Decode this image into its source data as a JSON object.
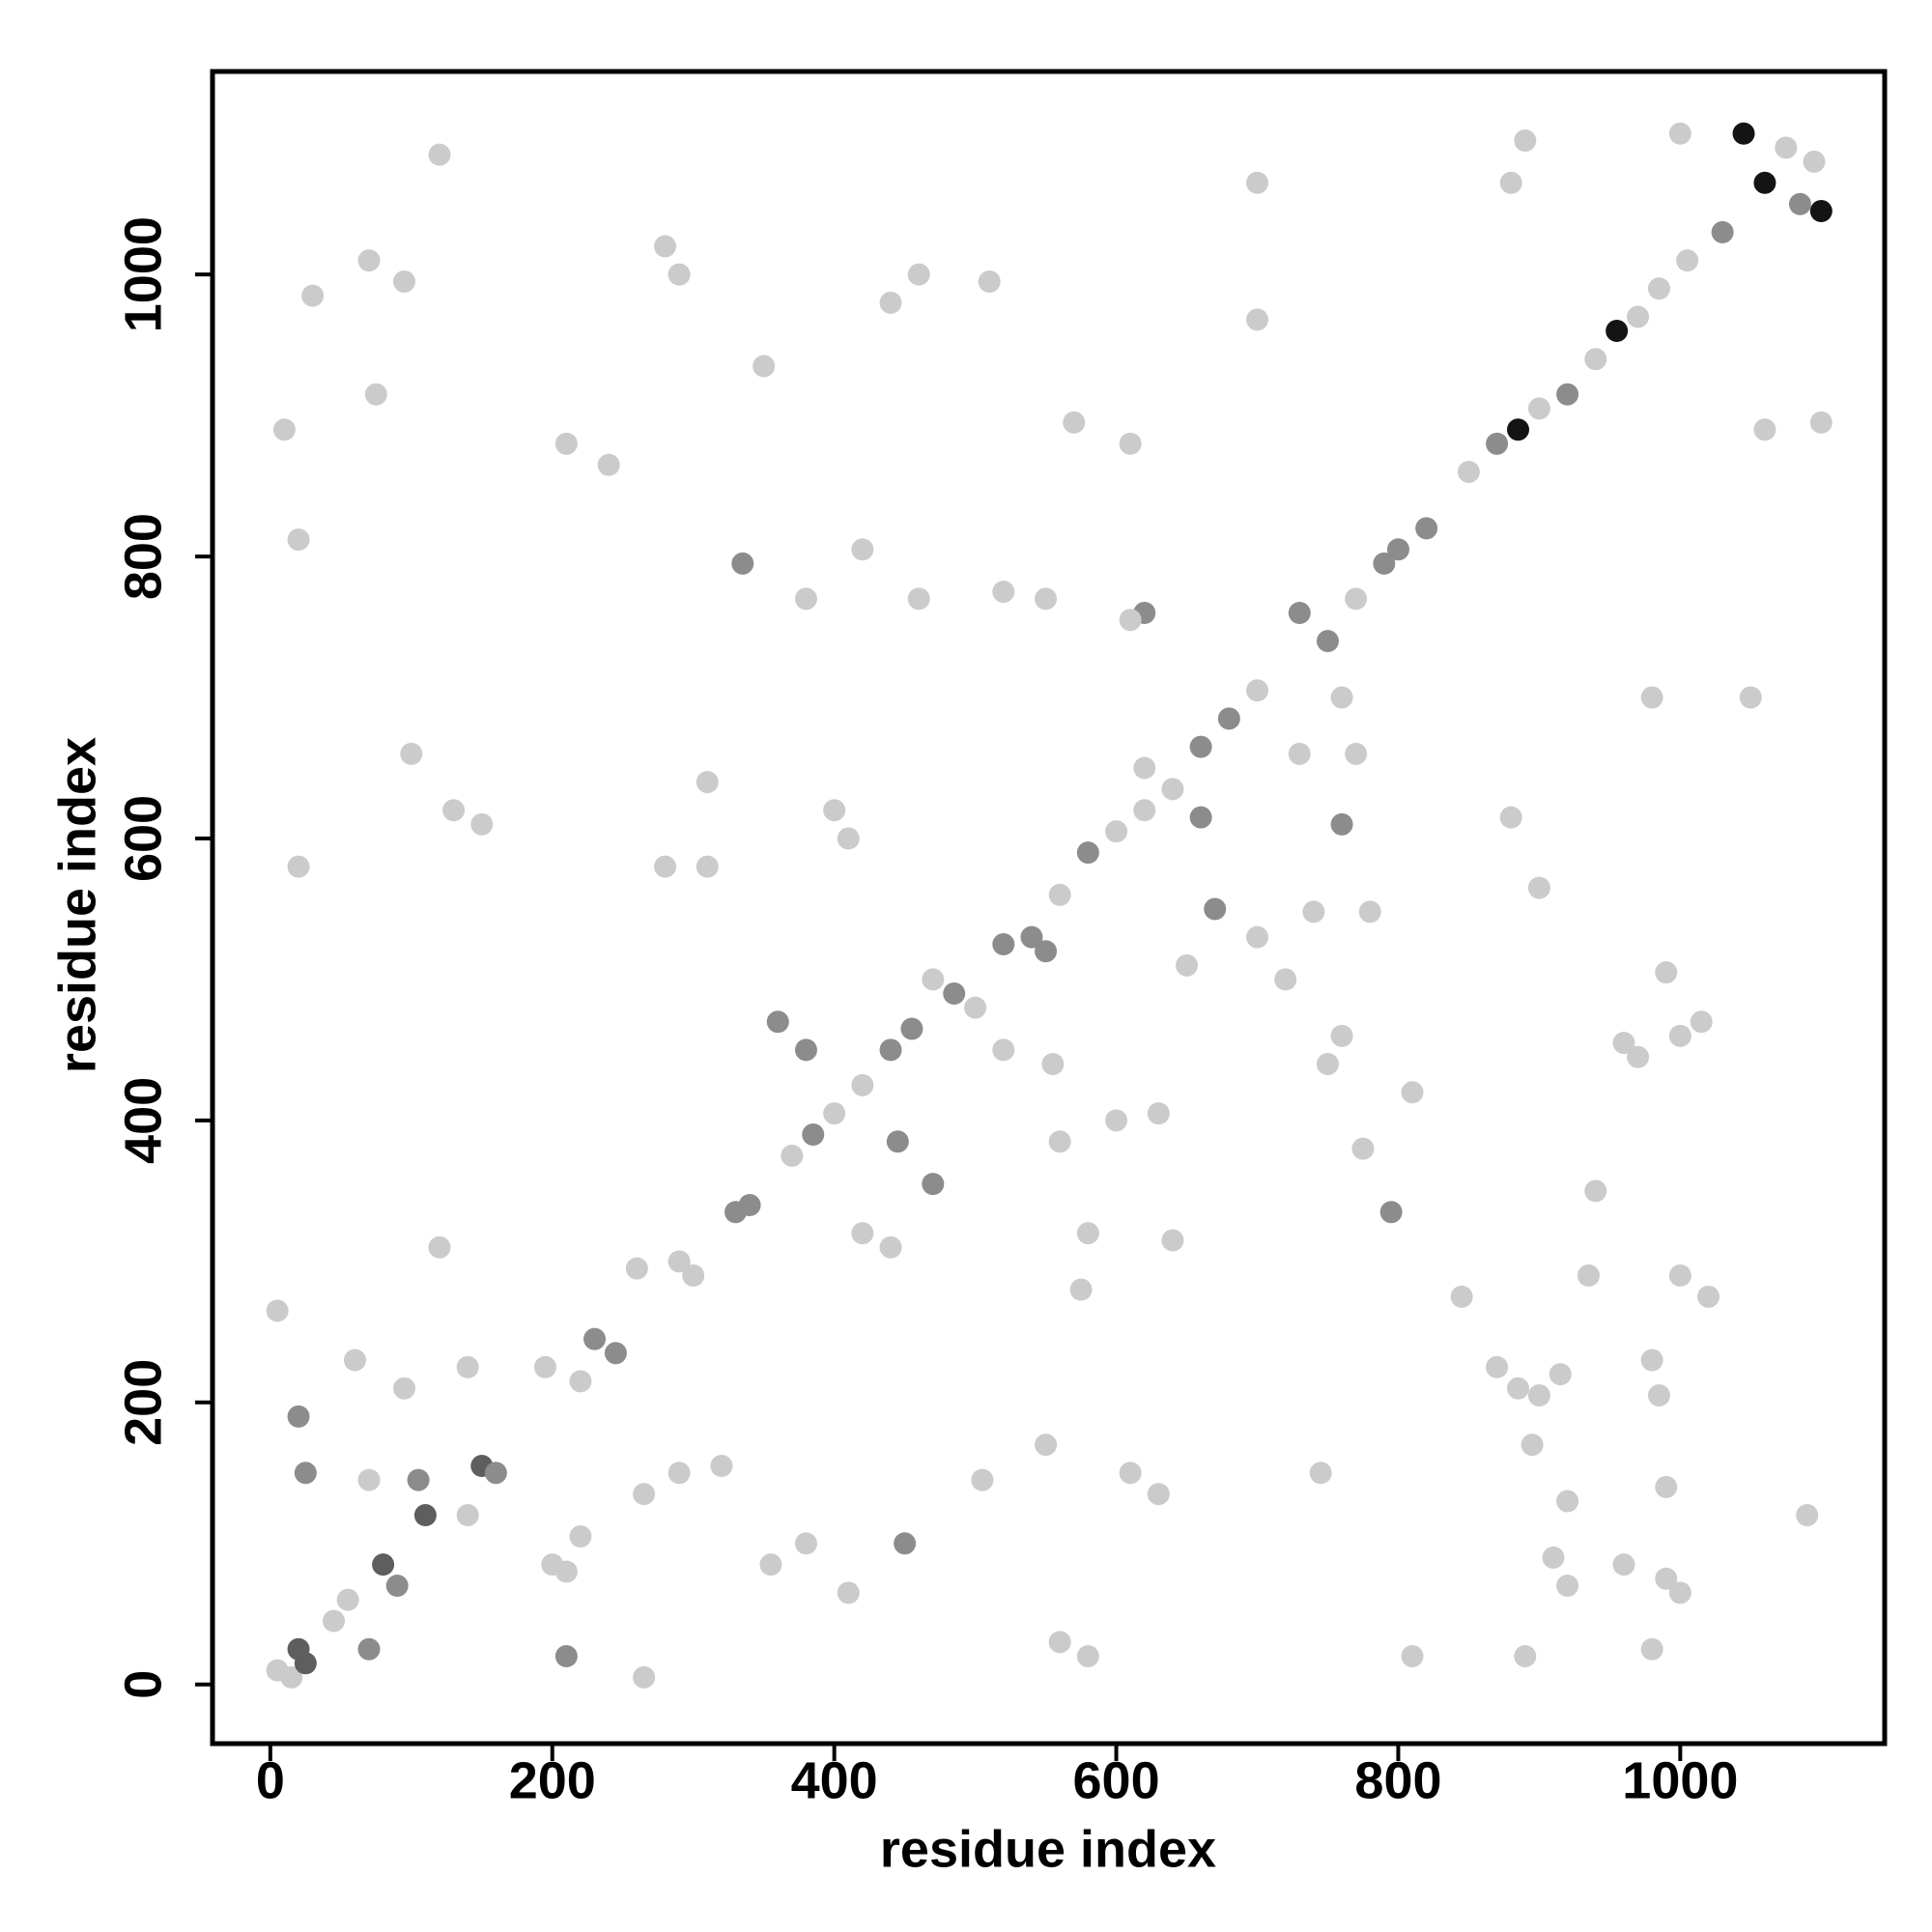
{
  "chart_data": {
    "type": "scatter",
    "xlabel": "residue index",
    "ylabel": "residue index",
    "xlim": [
      -41,
      1145
    ],
    "ylim": [
      -42,
      1144
    ],
    "xticks": [
      0,
      200,
      400,
      600,
      800,
      1000
    ],
    "yticks": [
      0,
      200,
      400,
      600,
      800,
      1000
    ],
    "x": [
      5,
      15,
      20,
      25,
      55,
      70,
      80,
      90,
      105,
      110,
      140,
      150,
      160,
      195,
      210,
      220,
      230,
      245,
      260,
      290,
      300,
      330,
      340,
      370,
      385,
      400,
      420,
      440,
      455,
      470,
      485,
      500,
      520,
      540,
      550,
      560,
      580,
      600,
      620,
      640,
      660,
      680,
      700,
      730,
      750,
      770,
      790,
      800,
      820,
      850,
      870,
      885,
      900,
      920,
      940,
      955,
      970,
      985,
      1005,
      1030,
      1045,
      1060,
      1075,
      1085,
      1100,
      1095,
      5,
      265,
      20,
      580,
      10,
      20,
      120,
      70,
      95,
      75,
      280,
      290,
      210,
      240,
      350,
      460,
      440,
      510,
      700,
      700,
      880,
      890,
      1000,
      620,
      610,
      420,
      520,
      550,
      335,
      380,
      460,
      130,
      150,
      100,
      310,
      400,
      410,
      280,
      310,
      610,
      570,
      760,
      660,
      620,
      670,
      650,
      720,
      380,
      360,
      520,
      555,
      600,
      630,
      445,
      470,
      560,
      580,
      575,
      420,
      440,
      640,
      750,
      760,
      775,
      795,
      810,
      845,
      870,
      885,
      900,
      895,
      920,
      910,
      920,
      960,
      990,
      1000,
      980,
      890,
      810,
      745,
      610,
      630,
      560,
      550,
      505,
      450,
      380,
      355,
      410,
      320,
      290,
      265,
      200,
      210,
      220,
      140,
      120,
      95,
      70,
      60,
      20,
      25,
      45,
      30,
      990,
      1000,
      1020,
      1000,
      970,
      990,
      960,
      1100,
      1060,
      1050,
      980,
      900,
      880,
      1015,
      1090,
      940,
      935,
      915,
      980,
      985,
      700,
      740,
      780,
      760,
      730,
      770
    ],
    "values": [
      10,
      5,
      25,
      15,
      60,
      25,
      85,
      70,
      145,
      120,
      120,
      155,
      150,
      225,
      20,
      215,
      245,
      235,
      295,
      300,
      290,
      335,
      340,
      375,
      390,
      405,
      425,
      450,
      465,
      500,
      490,
      480,
      525,
      530,
      520,
      560,
      590,
      605,
      620,
      635,
      665,
      685,
      705,
      760,
      740,
      770,
      795,
      805,
      820,
      860,
      880,
      890,
      905,
      915,
      940,
      960,
      970,
      990,
      1010,
      1030,
      1100,
      1065,
      1090,
      1050,
      1045,
      1080,
      265,
      5,
      580,
      20,
      890,
      812,
      1085,
      1010,
      995,
      915,
      1020,
      1000,
      880,
      865,
      935,
      1000,
      980,
      995,
      1065,
      968,
      1065,
      1095,
      1100,
      760,
      755,
      805,
      775,
      770,
      795,
      770,
      770,
      620,
      610,
      660,
      640,
      620,
      600,
      580,
      580,
      880,
      895,
      610,
      615,
      650,
      550,
      510,
      500,
      450,
      470,
      450,
      440,
      400,
      405,
      385,
      355,
      385,
      320,
      280,
      320,
      310,
      315,
      440,
      460,
      380,
      335,
      420,
      275,
      225,
      210,
      205,
      170,
      130,
      90,
      70,
      85,
      75,
      65,
      25,
      20,
      20,
      150,
      150,
      135,
      30,
      170,
      145,
      100,
      100,
      85,
      65,
      155,
      150,
      135,
      85,
      80,
      105,
      225,
      310,
      210,
      145,
      230,
      190,
      150,
      45,
      985,
      140,
      290,
      275,
      460,
      445,
      505,
      455,
      895,
      890,
      700,
      700,
      565,
      615,
      470,
      120,
      350,
      290,
      220,
      230,
      205,
      530,
      548,
      548,
      700,
      660,
      660
    ],
    "colors": [
      "#cbcbcb",
      "#cbcbcb",
      "#5e5e5e",
      "#5e5e5e",
      "#cbcbcb",
      "#8c8c8c",
      "#5e5e5e",
      "#8c8c8c",
      "#8c8c8c",
      "#5e5e5e",
      "#cbcbcb",
      "#5e5e5e",
      "#8c8c8c",
      "#cbcbcb",
      "#8c8c8c",
      "#cbcbcb",
      "#8c8c8c",
      "#8c8c8c",
      "#cbcbcb",
      "#cbcbcb",
      "#cbcbcb",
      "#8c8c8c",
      "#8c8c8c",
      "#cbcbcb",
      "#8c8c8c",
      "#cbcbcb",
      "#cbcbcb",
      "#8c8c8c",
      "#8c8c8c",
      "#cbcbcb",
      "#8c8c8c",
      "#cbcbcb",
      "#8c8c8c",
      "#8c8c8c",
      "#8c8c8c",
      "#cbcbcb",
      "#8c8c8c",
      "#cbcbcb",
      "#cbcbcb",
      "#cbcbcb",
      "#8c8c8c",
      "#8c8c8c",
      "#cbcbcb",
      "#8c8c8c",
      "#8c8c8c",
      "#cbcbcb",
      "#8c8c8c",
      "#8c8c8c",
      "#8c8c8c",
      "#cbcbcb",
      "#8c8c8c",
      "#141414",
      "#cbcbcb",
      "#8c8c8c",
      "#cbcbcb",
      "#141414",
      "#cbcbcb",
      "#cbcbcb",
      "#cbcbcb",
      "#8c8c8c",
      "#141414",
      "#141414",
      "#cbcbcb",
      "#8c8c8c",
      "#141414",
      "#cbcbcb",
      "#cbcbcb",
      "#cbcbcb",
      "#cbcbcb",
      "#cbcbcb",
      "#cbcbcb",
      "#cbcbcb",
      "#cbcbcb",
      "#cbcbcb",
      "#cbcbcb",
      "#cbcbcb",
      "#cbcbcb",
      "#cbcbcb",
      "#cbcbcb",
      "#cbcbcb",
      "#cbcbcb",
      "#cbcbcb",
      "#cbcbcb",
      "#cbcbcb",
      "#cbcbcb",
      "#cbcbcb",
      "#cbcbcb",
      "#cbcbcb",
      "#cbcbcb",
      "#8c8c8c",
      "#cbcbcb",
      "#cbcbcb",
      "#cbcbcb",
      "#cbcbcb",
      "#8c8c8c",
      "#cbcbcb",
      "#cbcbcb",
      "#cbcbcb",
      "#cbcbcb",
      "#cbcbcb",
      "#cbcbcb",
      "#cbcbcb",
      "#cbcbcb",
      "#cbcbcb",
      "#cbcbcb",
      "#cbcbcb",
      "#cbcbcb",
      "#8c8c8c",
      "#8c8c8c",
      "#cbcbcb",
      "#8c8c8c",
      "#cbcbcb",
      "#cbcbcb",
      "#8c8c8c",
      "#8c8c8c",
      "#cbcbcb",
      "#cbcbcb",
      "#cbcbcb",
      "#cbcbcb",
      "#8c8c8c",
      "#8c8c8c",
      "#cbcbcb",
      "#cbcbcb",
      "#cbcbcb",
      "#cbcbcb",
      "#cbcbcb",
      "#cbcbcb",
      "#cbcbcb",
      "#cbcbcb",
      "#cbcbcb",
      "#8c8c8c",
      "#cbcbcb",
      "#cbcbcb",
      "#cbcbcb",
      "#cbcbcb",
      "#cbcbcb",
      "#cbcbcb",
      "#cbcbcb",
      "#cbcbcb",
      "#cbcbcb",
      "#cbcbcb",
      "#cbcbcb",
      "#cbcbcb",
      "#cbcbcb",
      "#cbcbcb",
      "#cbcbcb",
      "#cbcbcb",
      "#cbcbcb",
      "#cbcbcb",
      "#cbcbcb",
      "#cbcbcb",
      "#cbcbcb",
      "#8c8c8c",
      "#cbcbcb",
      "#cbcbcb",
      "#cbcbcb",
      "#cbcbcb",
      "#cbcbcb",
      "#cbcbcb",
      "#cbcbcb",
      "#cbcbcb",
      "#cbcbcb",
      "#cbcbcb",
      "#cbcbcb",
      "#cbcbcb",
      "#cbcbcb",
      "#cbcbcb",
      "#8c8c8c",
      "#8c8c8c",
      "#cbcbcb",
      "#cbcbcb",
      "#cbcbcb",
      "#cbcbcb",
      "#cbcbcb",
      "#cbcbcb",
      "#cbcbcb",
      "#cbcbcb",
      "#cbcbcb",
      "#cbcbcb",
      "#cbcbcb",
      "#cbcbcb",
      "#cbcbcb",
      "#cbcbcb",
      "#cbcbcb",
      "#cbcbcb",
      "#cbcbcb",
      "#cbcbcb",
      "#cbcbcb",
      "#cbcbcb",
      "#cbcbcb",
      "#cbcbcb",
      "#cbcbcb",
      "#cbcbcb",
      "#cbcbcb",
      "#cbcbcb",
      "#cbcbcb",
      "#cbcbcb"
    ]
  }
}
